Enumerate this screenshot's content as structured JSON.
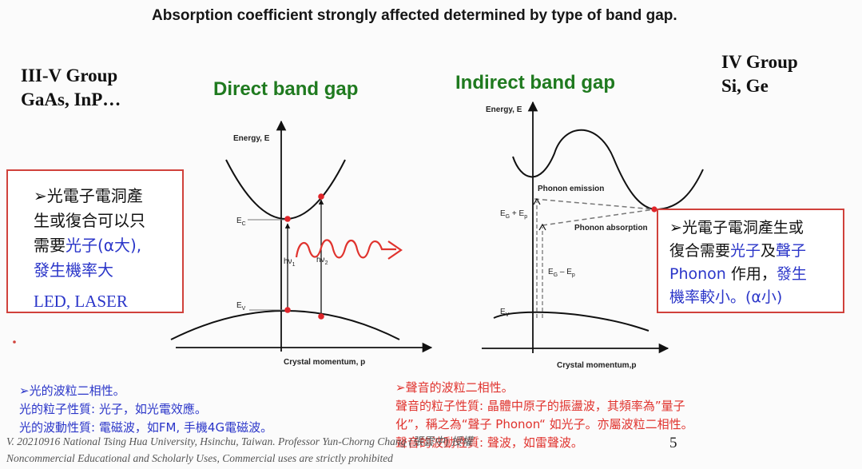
{
  "title": "Absorption coefficient strongly affected determined by type of band gap.",
  "left_group": {
    "line1": "III-V Group",
    "line2": "GaAs, InP…"
  },
  "right_group": {
    "line1": "IV Group",
    "line2": "Si, Ge"
  },
  "direct": {
    "heading": "Direct band gap",
    "y_axis": "Energy, E",
    "x_axis": "Crystal momentum, p",
    "ec": "E",
    "ec_sub": "C",
    "ev": "E",
    "ev_sub": "V",
    "hv1": "hν",
    "hv1_sub": "1",
    "hv2": "hν",
    "hv2_sub": "2"
  },
  "indirect": {
    "heading": "Indirect band gap",
    "y_axis": "Energy, E",
    "x_axis": "Crystal momentum,p",
    "phonon_emission": "Phonon emission",
    "phonon_absorption": "Phonon absorption",
    "eg_plus": "E",
    "eg_plus_sub": "G",
    "eg_plus_op": " + E",
    "eg_plus_sub2": "p",
    "eg_minus": "E",
    "eg_minus_sub": "G",
    "eg_minus_op": " – E",
    "eg_minus_sub2": "p",
    "ec": "E",
    "ec_sub": "c",
    "ev": "E",
    "ev_sub": "V"
  },
  "left_box": {
    "line1": "➢光電子電洞產",
    "line2": "生或復合可以只",
    "line3_pre": "需要",
    "line3_blue": "光子(α大),",
    "line4": "發生機率大",
    "line5": "LED, LASER"
  },
  "right_box": {
    "line1": "➢光電子電洞產生或",
    "line2_pre": "復合需要",
    "line2_blue1": "光子",
    "line2_mid": "及",
    "line2_blue2": "聲子",
    "line3_blue": "Phonon",
    "line3_mid": " 作用，",
    "line3_blue2": "發生",
    "line4_blue": "機率較小。(α小)"
  },
  "note_light": {
    "line1": "➢光的波粒二相性。",
    "line2": "光的粒子性質: 光子，如光電效應。",
    "line3": "光的波動性質: 電磁波，如FM, 手機4G電磁波。"
  },
  "note_sound": {
    "line1": "➢聲音的波粒二相性。",
    "line2": "聲音的粒子性質: 晶體中原子的振盪波，其頻率為”量子",
    "line3": "化”，稱之為“聲子 Phonon“ 如光子。亦屬波粒二相性。",
    "line4": "聲音的波動性質: 聲波，如雷聲波。"
  },
  "footer": {
    "line1": "V. 20210916 National Tsing Hua University, Hsinchu, Taiwan. Professor Yun-Chorng Chang (張雲中) 授權",
    "line2": "Noncommercial Educational and Scholarly Uses, Commercial uses are strictly prohibited"
  },
  "page_number": "5",
  "colors": {
    "heading_green": "#1f7a1f",
    "point_red": "#e0252a",
    "box_border": "#d0413b",
    "blue_text": "#2b36c9"
  }
}
